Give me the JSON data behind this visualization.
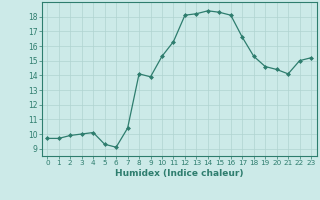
{
  "x": [
    0,
    1,
    2,
    3,
    4,
    5,
    6,
    7,
    8,
    9,
    10,
    11,
    12,
    13,
    14,
    15,
    16,
    17,
    18,
    19,
    20,
    21,
    22,
    23
  ],
  "y": [
    9.7,
    9.7,
    9.9,
    10.0,
    10.1,
    9.3,
    9.1,
    10.4,
    14.1,
    13.9,
    15.3,
    16.3,
    18.1,
    18.2,
    18.4,
    18.3,
    18.1,
    16.6,
    15.3,
    14.6,
    14.4,
    14.1,
    15.0,
    15.2
  ],
  "xlabel": "Humidex (Indice chaleur)",
  "line_color": "#2e7d6e",
  "marker": "D",
  "marker_size": 2,
  "bg_color": "#cceae8",
  "grid_color": "#b0d4d0",
  "tick_color": "#2e7d6e",
  "label_color": "#2e7d6e",
  "xlim": [
    -0.5,
    23.5
  ],
  "ylim": [
    8.5,
    19.0
  ],
  "yticks": [
    9,
    10,
    11,
    12,
    13,
    14,
    15,
    16,
    17,
    18
  ],
  "xticks": [
    0,
    1,
    2,
    3,
    4,
    5,
    6,
    7,
    8,
    9,
    10,
    11,
    12,
    13,
    14,
    15,
    16,
    17,
    18,
    19,
    20,
    21,
    22,
    23
  ]
}
